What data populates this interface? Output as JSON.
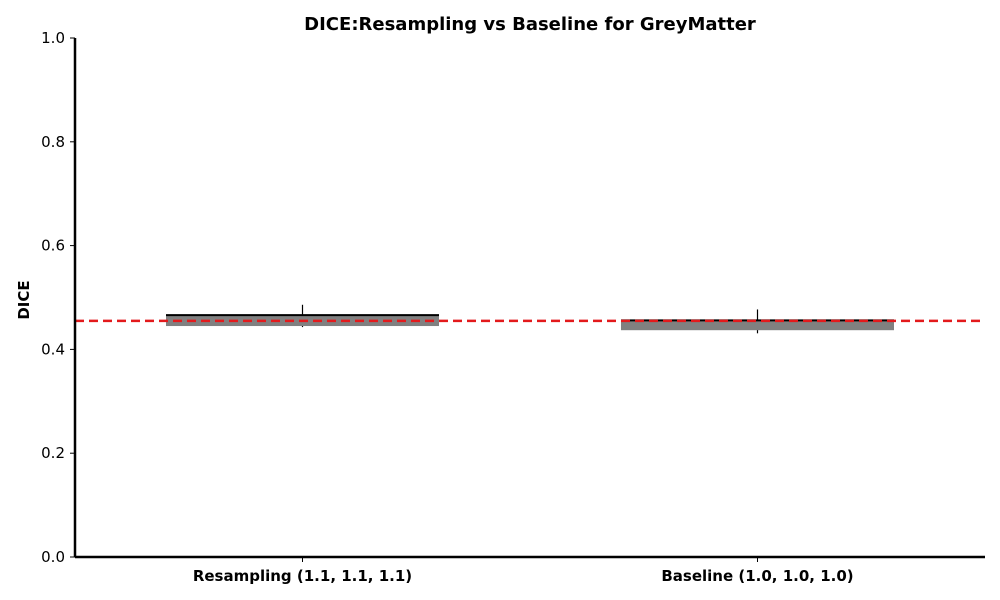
{
  "chart_data": {
    "type": "box",
    "title": "DICE:Resampling vs Baseline for GreyMatter",
    "xlabel": "",
    "ylabel": "DICE",
    "ylim": [
      0.0,
      1.0
    ],
    "yticks": [
      "0.0",
      "0.2",
      "0.4",
      "0.6",
      "0.8",
      "1.0"
    ],
    "ytick_values": [
      0.0,
      0.2,
      0.4,
      0.6,
      0.8,
      1.0
    ],
    "categories": [
      "Resampling (1.1, 1.1, 1.1)",
      "Baseline (1.0, 1.0, 1.0)"
    ],
    "boxes": [
      {
        "category": "Resampling (1.1, 1.1, 1.1)",
        "whisker_low": 0.443,
        "q1": 0.445,
        "median": 0.466,
        "q3": 0.466,
        "whisker_high": 0.486
      },
      {
        "category": "Baseline (1.0, 1.0, 1.0)",
        "whisker_low": 0.431,
        "q1": 0.437,
        "median": 0.456,
        "q3": 0.457,
        "whisker_high": 0.477
      }
    ],
    "reference_line": {
      "value": 0.455,
      "style": "dashed"
    },
    "grid": false,
    "colors": {
      "box_fill": "#808080",
      "median": "#000000",
      "reference_line": "#e31a1c",
      "axis": "#000000"
    }
  }
}
